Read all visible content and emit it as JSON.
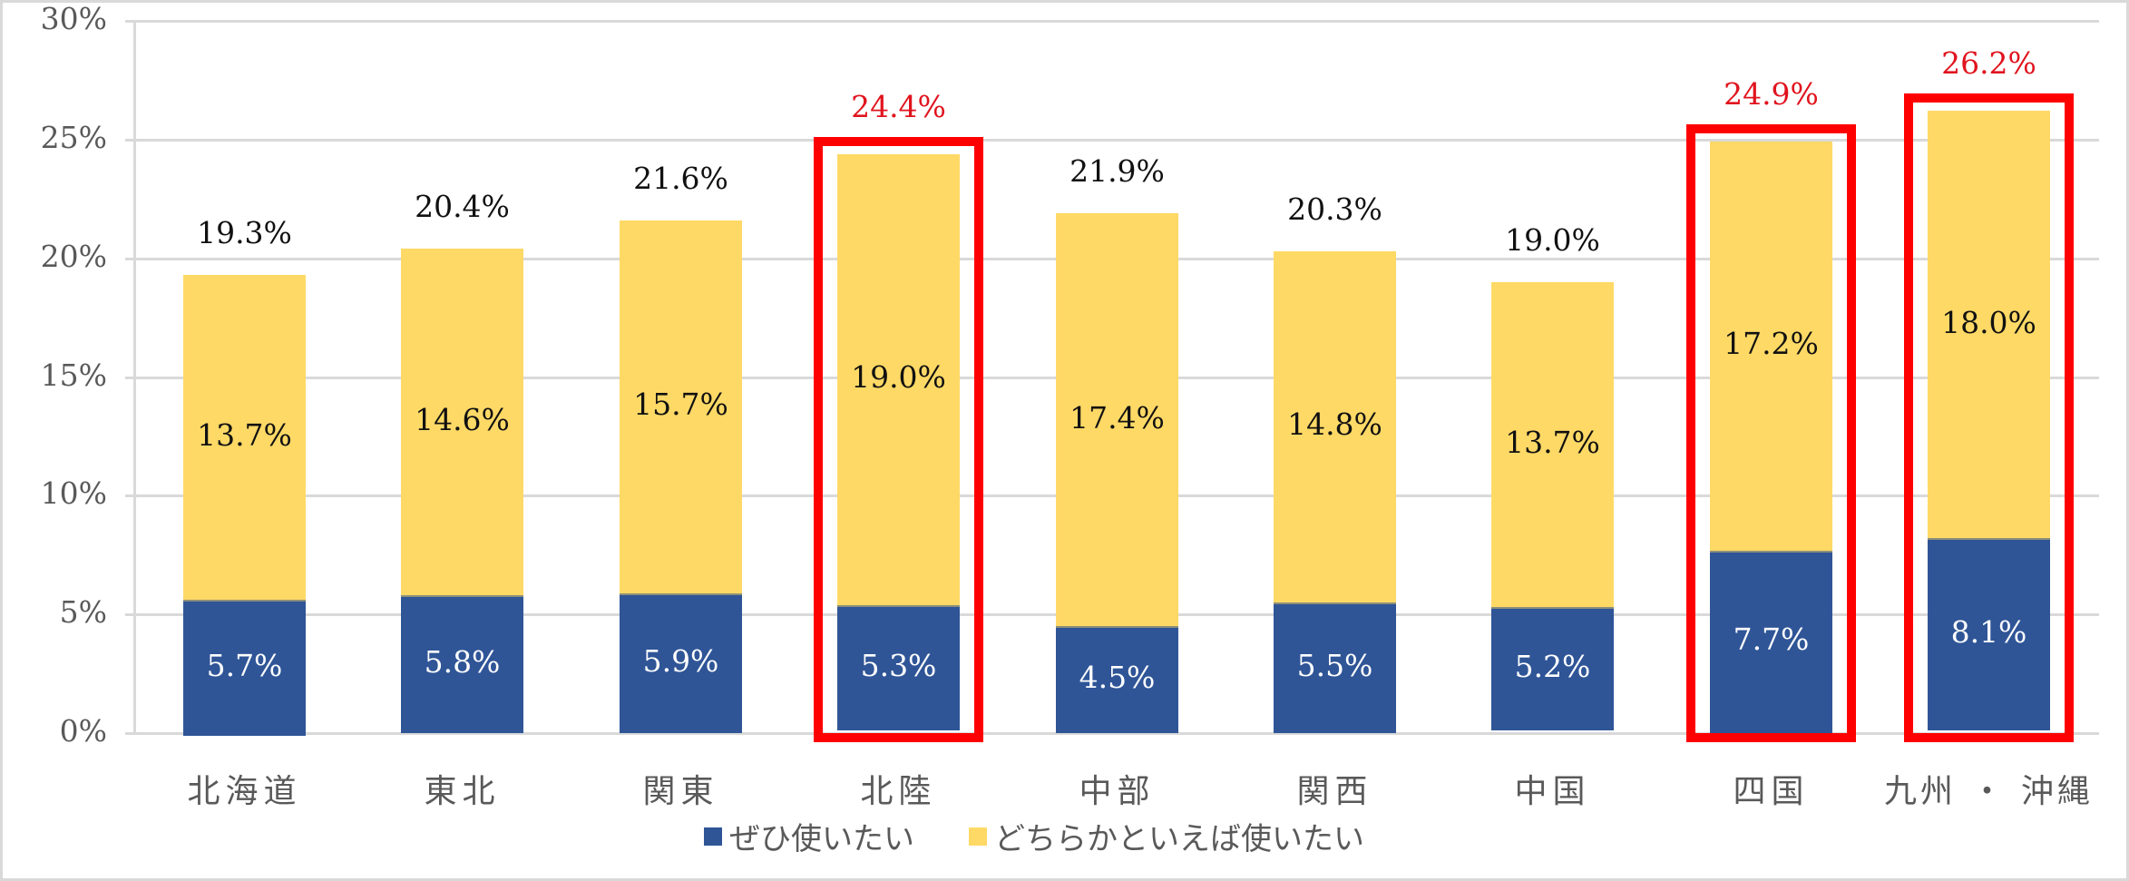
{
  "chart_data": {
    "type": "bar",
    "stacked": true,
    "title": "",
    "xlabel": "",
    "ylabel": "",
    "ylim": [
      0,
      30
    ],
    "yticks": [
      "0%",
      "5%",
      "10%",
      "15%",
      "20%",
      "25%",
      "30%"
    ],
    "grid": true,
    "legend_position": "bottom",
    "categories": [
      "北海道",
      "東北",
      "関東",
      "北陸",
      "中部",
      "関西",
      "中国",
      "四国",
      "九州・沖縄"
    ],
    "category_labels": [
      "北海道",
      "東北",
      "関東",
      "北陸",
      "中部",
      "関西",
      "中国",
      "四国",
      "九州 ・ 沖縄"
    ],
    "series": [
      {
        "name": "ぜひ使いたい",
        "color": "#2F5597",
        "values": [
          5.7,
          5.8,
          5.9,
          5.3,
          4.5,
          5.5,
          5.2,
          7.7,
          8.1
        ],
        "labels": [
          "5.7%",
          "5.8%",
          "5.9%",
          "5.3%",
          "4.5%",
          "5.5%",
          "5.2%",
          "7.7%",
          "8.1%"
        ]
      },
      {
        "name": "どちらかといえば使いたい",
        "color": "#FFD966",
        "values": [
          13.7,
          14.6,
          15.7,
          19.0,
          17.4,
          14.8,
          13.7,
          17.2,
          18.0
        ],
        "labels": [
          "13.7%",
          "14.6%",
          "15.7%",
          "19.0%",
          "17.4%",
          "14.8%",
          "13.7%",
          "17.2%",
          "18.0%"
        ]
      }
    ],
    "totals": [
      19.3,
      20.4,
      21.6,
      24.4,
      21.9,
      20.3,
      19.0,
      24.9,
      26.2
    ],
    "total_labels": [
      "19.3%",
      "20.4%",
      "21.6%",
      "24.4%",
      "21.9%",
      "20.3%",
      "19.0%",
      "24.9%",
      "26.2%"
    ],
    "highlighted": [
      "北陸",
      "四国",
      "九州・沖縄"
    ],
    "highlight_color": "#FF0000",
    "highlight_label_color": "#E0141E"
  },
  "legend": {
    "items": [
      {
        "label": "ぜひ使いたい",
        "color": "#2F5597"
      },
      {
        "label": "どちらかといえば使いたい",
        "color": "#FFD966"
      }
    ]
  }
}
